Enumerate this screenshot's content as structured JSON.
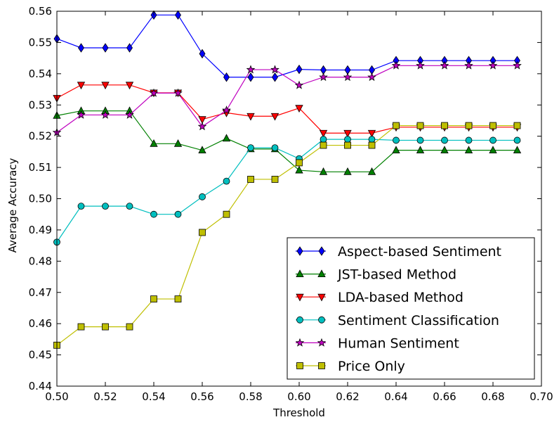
{
  "chart_data": {
    "type": "line",
    "title": "",
    "xlabel": "Threshold",
    "ylabel": "Average Accuracy",
    "xlim": [
      0.5,
      0.7
    ],
    "ylim": [
      0.44,
      0.56
    ],
    "xticks": [
      "0.50",
      "0.52",
      "0.54",
      "0.56",
      "0.58",
      "0.60",
      "0.62",
      "0.64",
      "0.66",
      "0.68",
      "0.70"
    ],
    "yticks": [
      "0.44",
      "0.45",
      "0.46",
      "0.47",
      "0.48",
      "0.49",
      "0.50",
      "0.51",
      "0.52",
      "0.53",
      "0.54",
      "0.55",
      "0.56"
    ],
    "grid": false,
    "legend_position": "lower-right",
    "x": [
      0.5,
      0.51,
      0.52,
      0.53,
      0.54,
      0.55,
      0.56,
      0.57,
      0.58,
      0.59,
      0.6,
      0.61,
      0.62,
      0.63,
      0.64,
      0.65,
      0.66,
      0.67,
      0.68,
      0.69
    ],
    "series": [
      {
        "name": "Aspect-based Sentiment",
        "color": "#0000ff",
        "marker": "diamond",
        "values": [
          0.5512,
          0.5483,
          0.5483,
          0.5483,
          0.5588,
          0.5588,
          0.5464,
          0.5389,
          0.5389,
          0.5389,
          0.5414,
          0.5412,
          0.5412,
          0.5412,
          0.5442,
          0.5442,
          0.5442,
          0.5442,
          0.5442,
          0.5442
        ]
      },
      {
        "name": "JST-based Method",
        "color": "#008000",
        "marker": "triangle-up",
        "values": [
          0.5266,
          0.5281,
          0.5281,
          0.5281,
          0.5176,
          0.5176,
          0.5155,
          0.5193,
          0.5159,
          0.5159,
          0.5091,
          0.5086,
          0.5086,
          0.5086,
          0.5155,
          0.5155,
          0.5155,
          0.5155,
          0.5155,
          0.5155
        ]
      },
      {
        "name": "LDA-based Method",
        "color": "#ff0000",
        "marker": "triangle-down",
        "values": [
          0.5322,
          0.5364,
          0.5364,
          0.5364,
          0.5339,
          0.5339,
          0.5254,
          0.5275,
          0.5264,
          0.5264,
          0.529,
          0.521,
          0.521,
          0.521,
          0.5229,
          0.5229,
          0.5229,
          0.5229,
          0.5229,
          0.5229
        ]
      },
      {
        "name": "Sentiment Classification",
        "color": "#00bfbf",
        "marker": "circle",
        "values": [
          0.4861,
          0.4976,
          0.4976,
          0.4976,
          0.495,
          0.495,
          0.5006,
          0.5056,
          0.5163,
          0.5163,
          0.5128,
          0.519,
          0.519,
          0.519,
          0.5187,
          0.5187,
          0.5187,
          0.5187,
          0.5187,
          0.5187
        ]
      },
      {
        "name": "Human Sentiment",
        "color": "#bf00bf",
        "marker": "star",
        "values": [
          0.5212,
          0.5268,
          0.5268,
          0.5268,
          0.5338,
          0.5338,
          0.5231,
          0.5283,
          0.5413,
          0.5413,
          0.5363,
          0.5389,
          0.5389,
          0.5389,
          0.5426,
          0.5426,
          0.5426,
          0.5426,
          0.5426,
          0.5426
        ]
      },
      {
        "name": "Price Only",
        "color": "#bfbf00",
        "marker": "square",
        "values": [
          0.4531,
          0.459,
          0.459,
          0.459,
          0.4679,
          0.4679,
          0.4892,
          0.495,
          0.5062,
          0.5062,
          0.5115,
          0.5171,
          0.5171,
          0.5171,
          0.5234,
          0.5234,
          0.5234,
          0.5234,
          0.5234,
          0.5234
        ]
      }
    ]
  }
}
